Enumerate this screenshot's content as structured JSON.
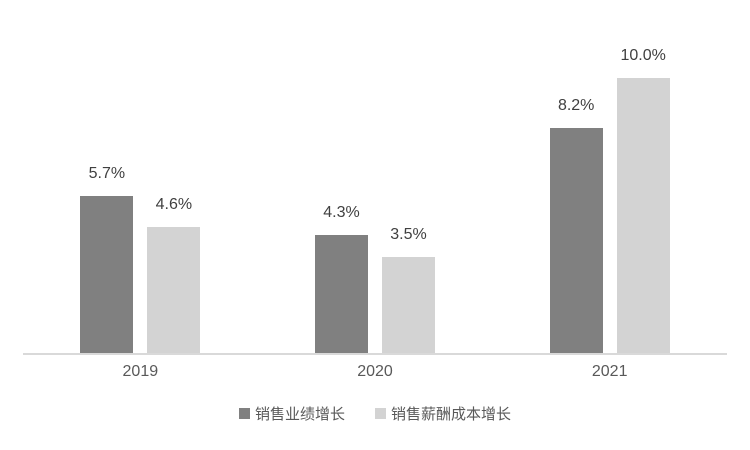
{
  "chart_data": {
    "type": "bar",
    "title": "",
    "xlabel": "",
    "ylabel": "",
    "categories": [
      "2019",
      "2020",
      "2021"
    ],
    "series": [
      {
        "name": "销售业绩增长",
        "values": [
          5.7,
          4.3,
          8.2
        ],
        "labels": [
          "5.7%",
          "4.3%",
          "8.2%"
        ],
        "color": "#808080"
      },
      {
        "name": "销售薪酬成本增长",
        "values": [
          4.6,
          3.5,
          10.0
        ],
        "labels": [
          "4.6%",
          "3.5%",
          "10.0%"
        ],
        "color": "#d3d3d3"
      }
    ],
    "ylim": [
      0,
      12.84
    ],
    "grid": false,
    "data_labels": true,
    "legend_position": "bottom",
    "axis_line_color": "#d9d9d9",
    "data_label_color": "#404040",
    "tick_label_color": "#595959"
  }
}
